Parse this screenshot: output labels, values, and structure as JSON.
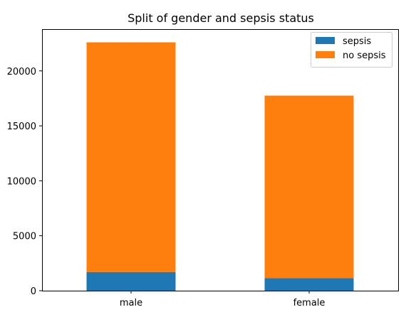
{
  "chart_data": {
    "type": "bar",
    "stacked": true,
    "title": "Split of gender and sepsis status",
    "xlabel": "",
    "ylabel": "",
    "categories": [
      "male",
      "female"
    ],
    "series": [
      {
        "name": "sepsis",
        "values": [
          1700,
          1150
        ],
        "color": "#1f77b4"
      },
      {
        "name": "no sepsis",
        "values": [
          20900,
          16600
        ],
        "color": "#ff7f0e"
      }
    ],
    "ylim": [
      0,
      23800
    ],
    "yticks": [
      0,
      5000,
      10000,
      15000,
      20000
    ],
    "grid": false,
    "legend_position": "top-right"
  }
}
